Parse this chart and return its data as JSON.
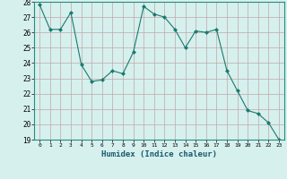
{
  "x": [
    0,
    1,
    2,
    3,
    4,
    5,
    6,
    7,
    8,
    9,
    10,
    11,
    12,
    13,
    14,
    15,
    16,
    17,
    18,
    19,
    20,
    21,
    22,
    23
  ],
  "y": [
    27.8,
    26.2,
    26.2,
    27.3,
    23.9,
    22.8,
    22.9,
    23.5,
    23.3,
    24.7,
    27.7,
    27.2,
    27.0,
    26.2,
    25.0,
    26.1,
    26.0,
    26.2,
    23.5,
    22.2,
    20.9,
    20.7,
    20.1,
    19.0
  ],
  "line_color": "#1a7a6e",
  "marker": "D",
  "marker_size": 2.0,
  "bg_color": "#d6f0ee",
  "grid_color": "#c0a8a8",
  "xlabel": "Humidex (Indice chaleur)",
  "xlim": [
    -0.5,
    23.5
  ],
  "ylim": [
    19,
    28
  ],
  "yticks": [
    19,
    20,
    21,
    22,
    23,
    24,
    25,
    26,
    27,
    28
  ],
  "xticks": [
    0,
    1,
    2,
    3,
    4,
    5,
    6,
    7,
    8,
    9,
    10,
    11,
    12,
    13,
    14,
    15,
    16,
    17,
    18,
    19,
    20,
    21,
    22,
    23
  ]
}
